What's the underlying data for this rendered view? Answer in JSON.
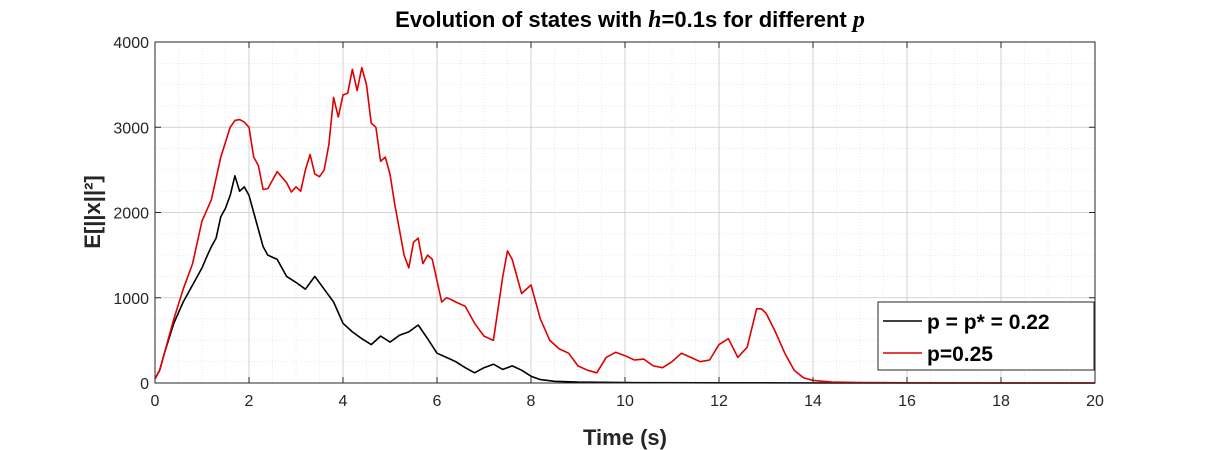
{
  "chart_data": {
    "type": "line",
    "title": {
      "prefix": "Evolution of states with ",
      "symbol_h": "h",
      "middle": "=0.1s for different ",
      "symbol_p": "p"
    },
    "xlabel": "Time (s)",
    "ylabel": "E[||x||²]",
    "xlim": [
      0,
      20
    ],
    "ylim": [
      0,
      4000
    ],
    "xticks": [
      0,
      2,
      4,
      6,
      8,
      10,
      12,
      14,
      16,
      18,
      20
    ],
    "yticks": [
      0,
      1000,
      2000,
      3000,
      4000
    ],
    "grid": true,
    "minor_grid": true,
    "legend_position": "bottom-right",
    "series": [
      {
        "name": "p = p* = 0.22",
        "color": "#000000",
        "x": [
          0,
          0.1,
          0.2,
          0.4,
          0.6,
          0.8,
          1.0,
          1.1,
          1.2,
          1.3,
          1.4,
          1.5,
          1.6,
          1.7,
          1.8,
          1.9,
          2.0,
          2.1,
          2.2,
          2.3,
          2.4,
          2.6,
          2.8,
          3.0,
          3.2,
          3.4,
          3.6,
          3.8,
          4.0,
          4.2,
          4.4,
          4.6,
          4.8,
          5.0,
          5.2,
          5.4,
          5.6,
          5.8,
          6.0,
          6.2,
          6.4,
          6.6,
          6.8,
          7.0,
          7.2,
          7.4,
          7.6,
          7.8,
          8.0,
          8.2,
          8.5,
          9.0,
          10,
          12,
          14,
          16,
          18,
          20
        ],
        "values": [
          50,
          150,
          350,
          700,
          950,
          1150,
          1350,
          1480,
          1600,
          1700,
          1950,
          2050,
          2200,
          2430,
          2250,
          2300,
          2200,
          2000,
          1800,
          1600,
          1500,
          1450,
          1250,
          1180,
          1100,
          1250,
          1100,
          950,
          700,
          600,
          520,
          450,
          550,
          480,
          560,
          600,
          680,
          520,
          350,
          300,
          250,
          180,
          120,
          180,
          220,
          160,
          200,
          150,
          80,
          40,
          20,
          10,
          5,
          2,
          1,
          0,
          0,
          0
        ]
      },
      {
        "name": "p=0.25",
        "color": "#e00000",
        "x": [
          0,
          0.1,
          0.2,
          0.4,
          0.6,
          0.8,
          1.0,
          1.2,
          1.4,
          1.6,
          1.7,
          1.8,
          1.9,
          2.0,
          2.1,
          2.2,
          2.3,
          2.4,
          2.6,
          2.8,
          2.9,
          3.0,
          3.1,
          3.2,
          3.3,
          3.4,
          3.5,
          3.6,
          3.7,
          3.8,
          3.9,
          4.0,
          4.1,
          4.2,
          4.3,
          4.4,
          4.5,
          4.6,
          4.7,
          4.8,
          4.9,
          5.0,
          5.1,
          5.2,
          5.3,
          5.4,
          5.5,
          5.6,
          5.7,
          5.8,
          5.9,
          6.0,
          6.1,
          6.2,
          6.3,
          6.4,
          6.6,
          6.8,
          7.0,
          7.2,
          7.4,
          7.5,
          7.6,
          7.8,
          8.0,
          8.2,
          8.4,
          8.6,
          8.8,
          9.0,
          9.2,
          9.4,
          9.6,
          9.8,
          10.0,
          10.2,
          10.4,
          10.6,
          10.8,
          11.0,
          11.2,
          11.4,
          11.6,
          11.8,
          12.0,
          12.2,
          12.4,
          12.6,
          12.8,
          12.9,
          13.0,
          13.2,
          13.4,
          13.6,
          13.8,
          14.0,
          14.4,
          15,
          16,
          18,
          20
        ],
        "values": [
          50,
          150,
          350,
          750,
          1100,
          1400,
          1900,
          2150,
          2650,
          3000,
          3080,
          3090,
          3060,
          3000,
          2650,
          2550,
          2270,
          2280,
          2480,
          2350,
          2240,
          2300,
          2250,
          2500,
          2680,
          2450,
          2420,
          2500,
          2800,
          3350,
          3120,
          3380,
          3400,
          3680,
          3430,
          3700,
          3500,
          3050,
          3000,
          2600,
          2650,
          2450,
          2100,
          1800,
          1500,
          1350,
          1650,
          1700,
          1400,
          1500,
          1450,
          1200,
          950,
          1000,
          980,
          950,
          900,
          700,
          550,
          500,
          1250,
          1550,
          1450,
          1050,
          1150,
          750,
          500,
          400,
          350,
          200,
          150,
          120,
          300,
          360,
          320,
          270,
          280,
          200,
          180,
          250,
          350,
          300,
          250,
          270,
          450,
          520,
          300,
          420,
          870,
          870,
          820,
          600,
          350,
          150,
          60,
          30,
          10,
          5,
          2,
          0,
          0
        ]
      }
    ]
  }
}
